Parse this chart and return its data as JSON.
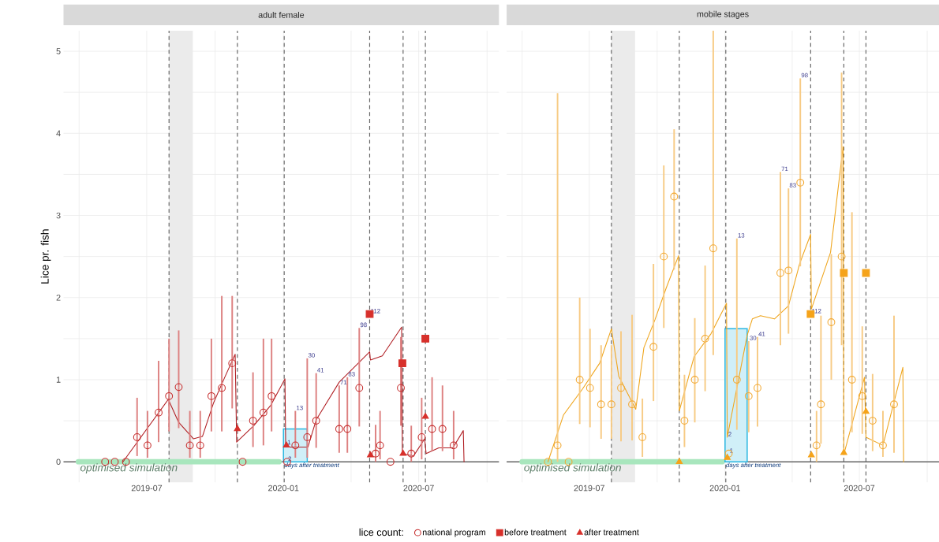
{
  "chart_data": [
    {
      "type": "line",
      "title": "adult female",
      "ylabel": "Lice pr. fish",
      "xlim": [
        "2019-03-11",
        "2020-10-17"
      ],
      "ylim": [
        -0.25,
        5.25
      ],
      "xticks": [
        {
          "value": "2019-04-01",
          "label": null
        },
        {
          "value": "2019-07-01",
          "label": "2019-07"
        },
        {
          "value": "2019-10-01",
          "label": null
        },
        {
          "value": "2020-01-01",
          "label": "2020-01"
        },
        {
          "value": "2020-04-01",
          "label": null
        },
        {
          "value": "2020-07-01",
          "label": "2020-07"
        },
        {
          "value": "2020-10-01",
          "label": null
        }
      ],
      "yticks": [
        0,
        {
          "value": 0.5,
          "label": null
        },
        1,
        {
          "value": 1.5,
          "label": null
        },
        2,
        {
          "value": 2.5,
          "label": null
        },
        3,
        {
          "value": 3.5,
          "label": null
        },
        4,
        {
          "value": 4.5,
          "label": null
        },
        5
      ],
      "grid": true,
      "legend": "bottom",
      "legend_title": "lice count:",
      "bands": [
        {
          "axis": "x",
          "from": "2019-07-31",
          "to": "2019-09-01",
          "color": "#ebebeb"
        }
      ],
      "ref_lines": [
        {
          "axis": "y",
          "value": 0,
          "color": "#666666",
          "line_style": "solid"
        },
        {
          "axis": "x",
          "value": "2019-07-31",
          "color": "#666666",
          "line_style": "dashed"
        },
        {
          "axis": "x",
          "value": "2019-10-31",
          "color": "#666666",
          "line_style": "dashed"
        },
        {
          "axis": "x",
          "value": "2020-01-02",
          "color": "#666666",
          "line_style": "dashed"
        },
        {
          "axis": "x",
          "value": "2020-04-26",
          "color": "#666666",
          "line_style": "dashed"
        },
        {
          "axis": "x",
          "value": "2020-06-10",
          "color": "#666666",
          "line_style": "dashed"
        },
        {
          "axis": "x",
          "value": "2020-07-10",
          "color": "#666666",
          "line_style": "dashed"
        }
      ],
      "series": [
        {
          "type": "line",
          "name": "optimised simulation",
          "color": "#a8e6bd",
          "x": [
            "2019-03-31",
            "2019-12-26"
          ],
          "values": [
            0,
            0
          ]
        },
        {
          "type": "area",
          "name": "days after treatment",
          "color": "#29b6e0",
          "x": [
            "2020-01-01",
            "2020-02-02"
          ],
          "values": [
            0.4,
            0.4
          ]
        },
        {
          "color": "#b01e23",
          "x": [
            "2019-05-30",
            "2019-07-30",
            "2019-08-13",
            "2019-09-02",
            "2019-09-14",
            "2019-09-29",
            "2019-10-14",
            "2019-10-28",
            "2019-10-30",
            "2019-11-22",
            "2019-12-15",
            "2020-01-03",
            "2020-01-04",
            "2020-02-03",
            "2020-02-14",
            "2020-03-16",
            "2020-04-26",
            "2020-04-27",
            "2020-05-13",
            "2020-06-08",
            "2020-06-09",
            "2020-06-24",
            "2020-07-09",
            "2020-07-11",
            "2020-07-28",
            "2020-08-16",
            "2020-08-30",
            "2020-08-31"
          ],
          "values": [
            0,
            0.76,
            0.48,
            0.28,
            0.31,
            0.72,
            1.03,
            1.31,
            0.24,
            0.44,
            0.69,
            1.01,
            0.18,
            0.18,
            0.51,
            0.97,
            1.34,
            1.24,
            1.29,
            1.64,
            0.1,
            0.07,
            0.28,
            0.1,
            0.17,
            0.17,
            0.38,
            0
          ]
        },
        {
          "type": "scatter",
          "name": "national program",
          "marker": "circle",
          "color": "#c62d2d",
          "x": [
            "2019-05-06",
            "2019-05-19",
            "2019-06-03",
            "2019-06-18",
            "2019-07-02",
            "2019-07-17",
            "2019-07-31",
            "2019-08-13",
            "2019-08-28",
            "2019-09-11",
            "2019-09-26",
            "2019-10-10",
            "2019-10-24",
            "2019-11-07",
            "2019-11-21",
            "2019-12-05",
            "2019-12-16",
            "2020-01-06",
            "2020-01-17",
            "2020-02-02",
            "2020-02-14",
            "2020-03-16",
            "2020-03-27",
            "2020-04-12",
            "2020-05-04",
            "2020-05-10",
            "2020-05-24",
            "2020-06-07",
            "2020-06-21",
            "2020-07-05",
            "2020-07-19",
            "2020-08-02",
            "2020-08-17"
          ],
          "values": [
            0,
            0,
            0,
            0.3,
            0.2,
            0.6,
            0.8,
            0.91,
            0.2,
            0.2,
            0.8,
            0.9,
            1.2,
            0,
            0.5,
            0.6,
            0.8,
            0,
            0.2,
            0.3,
            0.5,
            0.4,
            0.4,
            0.9,
            0.1,
            0.2,
            0,
            0.9,
            0.1,
            0.3,
            0.4,
            0.4,
            0.2
          ],
          "errors": [
            null,
            null,
            null,
            [
              0.07,
              0.78
            ],
            [
              0.05,
              0.62
            ],
            [
              0.24,
              1.23
            ],
            [
              0.37,
              1.5
            ],
            [
              0.41,
              1.6
            ],
            [
              0.05,
              0.62
            ],
            [
              0.05,
              0.62
            ],
            [
              0.37,
              1.5
            ],
            [
              0.37,
              2.02
            ],
            [
              0.65,
              2.02
            ],
            null,
            [
              0.18,
              1.09
            ],
            [
              0.2,
              1.5
            ],
            [
              0.37,
              1.5
            ],
            null,
            [
              0.05,
              0.62
            ],
            [
              0.05,
              1.26
            ],
            [
              0.17,
              1.08
            ],
            [
              0.11,
              0.93
            ],
            [
              0.11,
              1.03
            ],
            [
              0.43,
              1.63
            ],
            [
              0,
              0.45
            ],
            [
              0.03,
              0.62
            ],
            null,
            [
              0.44,
              1.52
            ],
            [
              0,
              0.44
            ],
            [
              0.03,
              0.78
            ],
            [
              0.13,
              1.03
            ],
            [
              0.13,
              0.93
            ],
            [
              0.03,
              0.62
            ]
          ]
        },
        {
          "type": "scatter",
          "name": "before treatment",
          "marker": "square",
          "color": "#d7302b",
          "x": [
            "2020-04-26",
            "2020-06-09",
            "2020-07-10"
          ],
          "values": [
            1.8,
            1.2,
            1.5
          ]
        },
        {
          "type": "scatter",
          "name": "after treatment",
          "marker": "triangle",
          "color": "#d7302b",
          "x": [
            "2019-10-31",
            "2020-01-05",
            "2020-04-27",
            "2020-06-10",
            "2020-07-10"
          ],
          "values": [
            0.4,
            0.2,
            0.08,
            0.1,
            0.55
          ]
        }
      ],
      "annotations": [
        {
          "text": "1",
          "x": "2020-01-05",
          "y": 0.2
        },
        {
          "text": "2",
          "x": "2020-01-06",
          "y": 0
        },
        {
          "text": "13",
          "x": "2020-01-17",
          "y": 0.62
        },
        {
          "text": "30",
          "x": "2020-02-02",
          "y": 1.26
        },
        {
          "text": "41",
          "x": "2020-02-14",
          "y": 1.08
        },
        {
          "text": "71",
          "x": "2020-03-16",
          "y": 0.93
        },
        {
          "text": "83",
          "x": "2020-03-27",
          "y": 1.03
        },
        {
          "text": "98",
          "x": "2020-04-12",
          "y": 1.63
        },
        {
          "text": "112",
          "x": "2020-04-26",
          "y": 1.8
        }
      ]
    },
    {
      "type": "line",
      "title": "mobile stages",
      "xlim": [
        "2019-03-11",
        "2020-10-17"
      ],
      "ylim": [
        -0.25,
        5.25
      ],
      "tick_labels": "x",
      "xticks": [
        {
          "value": "2019-04-01",
          "label": null
        },
        {
          "value": "2019-07-01",
          "label": "2019-07"
        },
        {
          "value": "2019-10-01",
          "label": null
        },
        {
          "value": "2020-01-01",
          "label": "2020-01"
        },
        {
          "value": "2020-04-01",
          "label": null
        },
        {
          "value": "2020-07-01",
          "label": "2020-07"
        },
        {
          "value": "2020-10-01",
          "label": null
        }
      ],
      "yticks": [
        0,
        {
          "value": 0.5,
          "label": null
        },
        1,
        {
          "value": 1.5,
          "label": null
        },
        2,
        {
          "value": 2.5,
          "label": null
        },
        3,
        {
          "value": 3.5,
          "label": null
        },
        4,
        {
          "value": 4.5,
          "label": null
        },
        5
      ],
      "grid": true,
      "bands": [
        {
          "axis": "x",
          "from": "2019-07-31",
          "to": "2019-09-01",
          "color": "#ebebeb"
        }
      ],
      "ref_lines": [
        {
          "axis": "y",
          "value": 0,
          "color": "#666666",
          "line_style": "solid"
        },
        {
          "axis": "x",
          "value": "2019-07-31",
          "color": "#666666",
          "line_style": "dashed"
        },
        {
          "axis": "x",
          "value": "2019-10-31",
          "color": "#666666",
          "line_style": "dashed"
        },
        {
          "axis": "x",
          "value": "2020-01-02",
          "color": "#666666",
          "line_style": "dashed"
        },
        {
          "axis": "x",
          "value": "2020-04-26",
          "color": "#666666",
          "line_style": "dashed"
        },
        {
          "axis": "x",
          "value": "2020-06-10",
          "color": "#666666",
          "line_style": "dashed"
        },
        {
          "axis": "x",
          "value": "2020-07-10",
          "color": "#666666",
          "line_style": "dashed"
        }
      ],
      "series": [
        {
          "type": "line",
          "name": "optimised simulation",
          "color": "#a8e6bd",
          "x": [
            "2019-04-01",
            "2019-12-28"
          ],
          "values": [
            0,
            0
          ]
        },
        {
          "type": "area",
          "name": "days after treatment",
          "color": "#29b6e0",
          "x": [
            "2020-01-01",
            "2020-01-31"
          ],
          "values": [
            1.62,
            1.62
          ]
        },
        {
          "color": "#efa51c",
          "x": [
            "2019-05-06",
            "2019-05-27",
            "2019-06-22",
            "2019-07-15",
            "2019-07-31",
            "2019-08-10",
            "2019-09-02",
            "2019-09-13",
            "2019-09-28",
            "2019-10-13",
            "2019-10-30",
            "2019-10-31",
            "2019-11-20",
            "2019-12-13",
            "2020-01-03",
            "2020-01-04",
            "2020-01-31",
            "2020-02-07",
            "2020-02-18",
            "2020-03-08",
            "2020-03-27",
            "2020-04-11",
            "2020-04-26",
            "2020-04-27",
            "2020-05-23",
            "2020-06-09",
            "2020-06-10",
            "2020-07-08",
            "2020-07-10",
            "2020-08-02",
            "2020-08-29",
            "2020-08-30"
          ],
          "values": [
            0,
            0.57,
            0.89,
            1.2,
            1.62,
            1.04,
            0.64,
            1.39,
            1.73,
            2.11,
            2.51,
            0.62,
            1.28,
            1.56,
            1.93,
            0.3,
            1.54,
            1.74,
            1.78,
            1.74,
            1.9,
            2.41,
            2.77,
            1.86,
            2.55,
            3.84,
            0.09,
            1.03,
            0.3,
            0.2,
            1.15,
            0
          ]
        },
        {
          "type": "scatter",
          "marker": "circle",
          "color": "#f2a933",
          "x": [
            "2019-05-06",
            "2019-05-19",
            "2019-06-03",
            "2019-06-18",
            "2019-07-02",
            "2019-07-17",
            "2019-07-31",
            "2019-08-13",
            "2019-08-28",
            "2019-09-11",
            "2019-09-26",
            "2019-10-10",
            "2019-10-24",
            "2019-11-07",
            "2019-11-21",
            "2019-12-05",
            "2019-12-16",
            "2020-01-06",
            "2020-01-17",
            "2020-02-02",
            "2020-02-14",
            "2020-03-16",
            "2020-03-27",
            "2020-04-12",
            "2020-05-04",
            "2020-05-10",
            "2020-05-24",
            "2020-06-07",
            "2020-06-21",
            "2020-07-05",
            "2020-07-19",
            "2020-08-02",
            "2020-08-17"
          ],
          "values": [
            0,
            0.2,
            0,
            1.0,
            0.9,
            0.7,
            0.7,
            0.9,
            0.7,
            0.3,
            1.4,
            2.5,
            3.23,
            0.5,
            1.0,
            1.5,
            2.6,
            0.1,
            1.0,
            0.8,
            0.9,
            2.3,
            2.33,
            3.4,
            0.2,
            0.7,
            1.7,
            2.5,
            1.0,
            0.8,
            0.5,
            0.2,
            0.7
          ],
          "errors": [
            null,
            [
              0,
              4.49
            ],
            null,
            [
              0.46,
              2.0
            ],
            [
              0.42,
              1.62
            ],
            [
              0.28,
              1.42
            ],
            [
              0.28,
              1.42
            ],
            [
              0.25,
              1.59
            ],
            [
              0.26,
              1.79
            ],
            [
              0.06,
              0.77
            ],
            [
              0.74,
              2.41
            ],
            [
              1.63,
              3.61
            ],
            [
              2.34,
              4.05
            ],
            [
              0.18,
              1.06
            ],
            [
              0.48,
              1.75
            ],
            [
              0.86,
              2.39
            ],
            [
              1.3,
              5.25
            ],
            null,
            [
              0.39,
              2.72
            ],
            [
              0.36,
              1.47
            ],
            [
              0.43,
              1.52
            ],
            [
              1.42,
              3.53
            ],
            [
              1.56,
              3.33
            ],
            [
              2.38,
              4.67
            ],
            [
              0,
              0.62
            ],
            [
              0.22,
              1.78
            ],
            [
              1.0,
              2.53
            ],
            [
              1.42,
              4.74
            ],
            [
              0.36,
              3.04
            ],
            [
              0.34,
              1.65
            ],
            [
              0.13,
              1.07
            ],
            [
              0.06,
              0.62
            ],
            [
              0.11,
              1.78
            ]
          ]
        },
        {
          "type": "scatter",
          "marker": "square",
          "color": "#f5a31a",
          "x": [
            "2020-04-26",
            "2020-06-10",
            "2020-07-10"
          ],
          "values": [
            1.8,
            2.3,
            2.3
          ]
        },
        {
          "type": "scatter",
          "marker": "triangle",
          "color": "#f5a31a",
          "x": [
            "2019-10-31",
            "2020-01-04",
            "2020-04-27",
            "2020-06-10",
            "2020-07-10"
          ],
          "values": [
            0,
            0.05,
            0.08,
            0.11,
            0.61
          ]
        }
      ],
      "annotations": [
        {
          "text": "1",
          "x": "2020-01-06",
          "y": 0.1
        },
        {
          "text": "2",
          "x": "2020-01-04",
          "y": 0.3
        },
        {
          "text": "13",
          "x": "2020-01-17",
          "y": 2.72
        },
        {
          "text": "30",
          "x": "2020-02-02",
          "y": 1.47
        },
        {
          "text": "41",
          "x": "2020-02-14",
          "y": 1.52
        },
        {
          "text": "71",
          "x": "2020-03-16",
          "y": 3.53
        },
        {
          "text": "83",
          "x": "2020-03-27",
          "y": 3.33
        },
        {
          "text": "98",
          "x": "2020-04-12",
          "y": 4.67
        },
        {
          "text": "112",
          "x": "2020-04-26",
          "y": 1.8
        }
      ]
    }
  ]
}
